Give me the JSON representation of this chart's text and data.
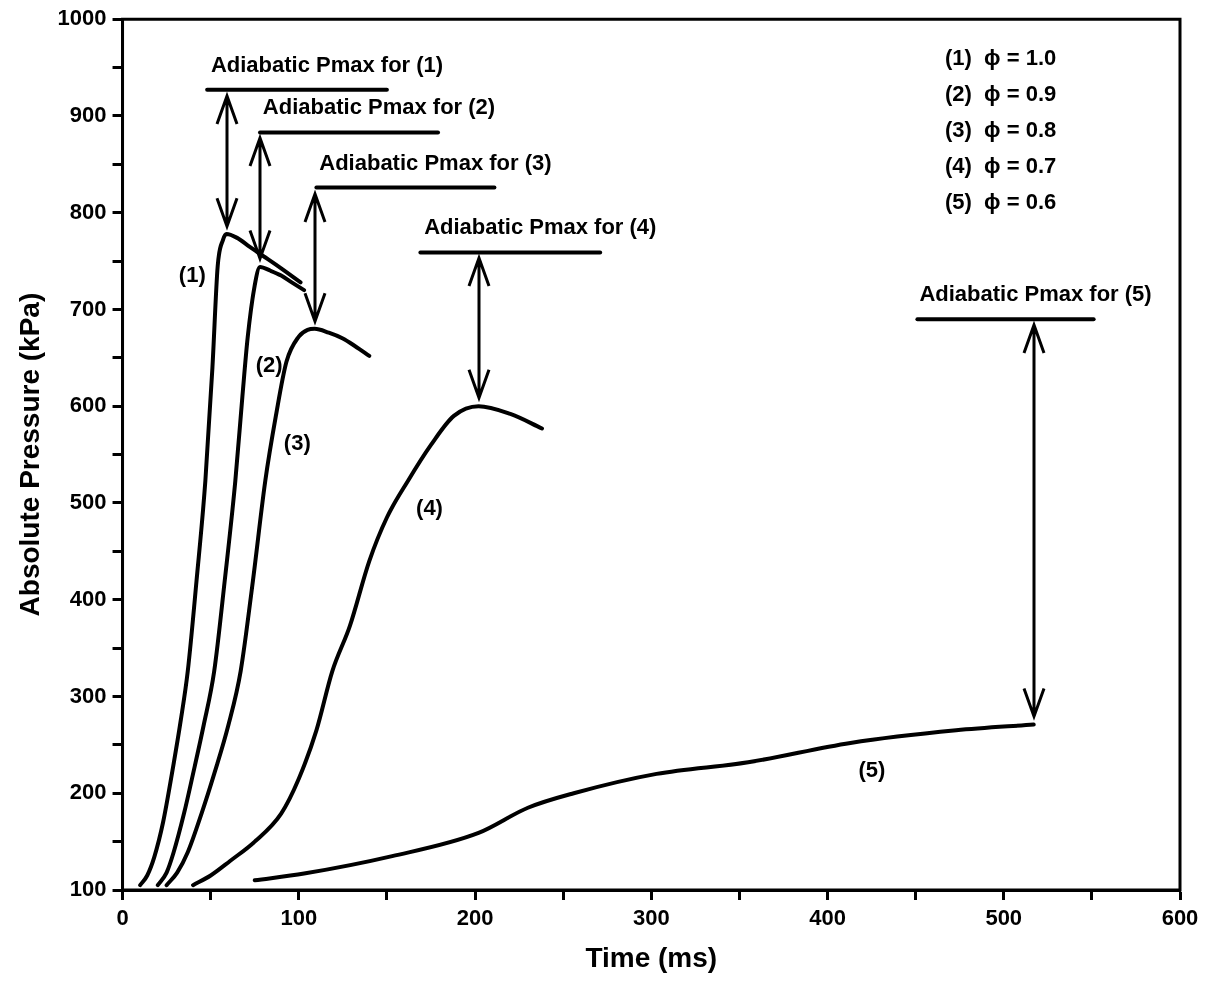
{
  "chart_data": {
    "type": "line",
    "xlabel": "Time (ms)",
    "ylabel": "Absolute Pressure (kPa)",
    "xlim": [
      0,
      600
    ],
    "ylim": [
      100,
      1000
    ],
    "xticks": [
      0,
      {
        "value": 50,
        "label": null
      },
      100,
      {
        "value": 150,
        "label": null
      },
      200,
      {
        "value": 250,
        "label": null
      },
      300,
      {
        "value": 350,
        "label": null
      },
      400,
      {
        "value": 450,
        "label": null
      },
      500,
      {
        "value": 550,
        "label": null
      },
      600
    ],
    "yticks": [
      100,
      {
        "value": 150,
        "label": null
      },
      200,
      {
        "value": 250,
        "label": null
      },
      300,
      {
        "value": 350,
        "label": null
      },
      400,
      {
        "value": 450,
        "label": null
      },
      500,
      {
        "value": 550,
        "label": null
      },
      600,
      {
        "value": 650,
        "label": null
      },
      700,
      {
        "value": 750,
        "label": null
      },
      800,
      {
        "value": 850,
        "label": null
      },
      900,
      {
        "value": 950,
        "label": null
      },
      1000
    ],
    "grid": false,
    "legend": false,
    "marker": "none",
    "line_style": "solid",
    "series": [
      {
        "color": "#000000",
        "x": [
          10,
          14,
          18,
          23,
          28,
          33,
          37,
          42,
          47,
          51,
          54,
          57,
          59,
          65,
          72,
          80,
          88,
          101
        ],
        "values": [
          105,
          115,
          134,
          170,
          220,
          275,
          326,
          420,
          523,
          640,
          745,
          772,
          778,
          774,
          765,
          755,
          745,
          728
        ]
      },
      {
        "color": "#000000",
        "x": [
          20,
          25,
          29,
          35,
          40,
          46,
          52,
          58,
          64,
          68,
          71,
          75,
          78,
          84,
          90,
          96,
          103
        ],
        "values": [
          105,
          118,
          139,
          180,
          220,
          270,
          326,
          420,
          523,
          610,
          671,
          725,
          744,
          740,
          735,
          728,
          720
        ]
      },
      {
        "color": "#000000",
        "x": [
          25,
          31,
          37,
          45,
          52,
          60,
          67,
          74,
          81,
          87,
          93,
          100,
          105,
          109,
          117,
          125,
          132,
          140
        ],
        "values": [
          105,
          118,
          139,
          180,
          220,
          270,
          326,
          420,
          523,
          590,
          646,
          672,
          679,
          680,
          676,
          670,
          662,
          652
        ]
      },
      {
        "color": "#000000",
        "x": [
          40,
          50,
          61,
          75,
          90,
          100,
          110,
          119,
          129,
          140,
          150,
          162,
          175,
          188,
          202,
          220,
          238
        ],
        "values": [
          105,
          115,
          130,
          150,
          179,
          215,
          265,
          326,
          373,
          440,
          485,
          523,
          560,
          590,
          600,
          592,
          577
        ]
      },
      {
        "color": "#000000",
        "x": [
          75,
          103,
          153,
          202,
          230,
          256,
          303,
          355,
          413,
          473,
          517
        ],
        "values": [
          110,
          117,
          135,
          159,
          185,
          200,
          220,
          232,
          252,
          265,
          271
        ]
      },
      {
        "type": "line",
        "color": "#000000",
        "x": [
          48,
          150
        ],
        "values": [
          927,
          927
        ]
      },
      {
        "type": "line",
        "color": "#000000",
        "x": [
          78,
          179
        ],
        "values": [
          883,
          883
        ]
      },
      {
        "type": "line",
        "color": "#000000",
        "x": [
          110,
          211
        ],
        "values": [
          826,
          826
        ]
      },
      {
        "type": "line",
        "color": "#000000",
        "x": [
          169,
          271
        ],
        "values": [
          759,
          759
        ]
      },
      {
        "type": "line",
        "color": "#000000",
        "x": [
          451,
          551
        ],
        "values": [
          690,
          690
        ]
      }
    ],
    "annotations": [
      {
        "text": "Adiabatic Pmax for (1)",
        "x": 99,
        "y": 927
      },
      {
        "text": "Adiabatic Pmax for (2)",
        "x": 128.5,
        "y": 883
      },
      {
        "text": "Adiabatic Pmax for (3)",
        "x": 160.5,
        "y": 826
      },
      {
        "text": "Adiabatic Pmax for (4)",
        "x": 220,
        "y": 759
      },
      {
        "text": "Adiabatic Pmax for (5)",
        "x": 501,
        "y": 690
      },
      "(1)",
      "(2)",
      "(3)",
      "(4)",
      "(5)",
      "(1)  ϕ = 1.0",
      "(2)  ϕ = 0.9",
      "(3)  ϕ = 0.8",
      "(4)  ϕ = 0.7",
      "(5)  ϕ = 0.6"
    ]
  }
}
